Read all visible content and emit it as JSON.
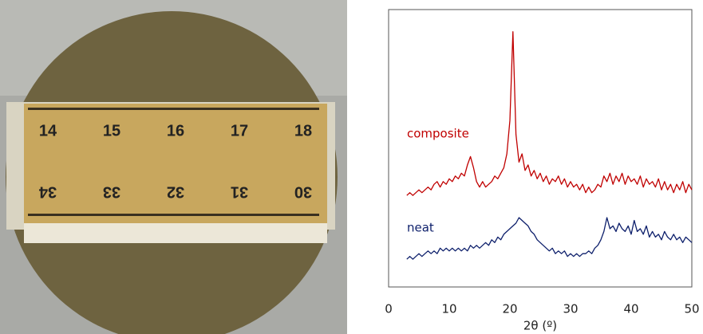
{
  "photo": {
    "ruler_top": [
      "14",
      "15",
      "16",
      "17",
      "18"
    ],
    "ruler_bottom": [
      "34",
      "33",
      "32",
      "31",
      "30"
    ]
  },
  "chart_data": {
    "type": "line",
    "xlabel": "2θ (º)",
    "x": [
      3,
      3.5,
      4,
      4.5,
      5,
      5.5,
      6,
      6.5,
      7,
      7.5,
      8,
      8.5,
      9,
      9.5,
      10,
      10.5,
      11,
      11.5,
      12,
      12.5,
      13,
      13.5,
      14,
      14.5,
      15,
      15.5,
      16,
      16.5,
      17,
      17.5,
      18,
      18.5,
      19,
      19.5,
      20,
      20.5,
      21,
      21.5,
      22,
      22.5,
      23,
      23.5,
      24,
      24.5,
      25,
      25.5,
      26,
      26.5,
      27,
      27.5,
      28,
      28.5,
      29,
      29.5,
      30,
      30.5,
      31,
      31.5,
      32,
      32.5,
      33,
      33.5,
      34,
      34.5,
      35,
      35.5,
      36,
      36.5,
      37,
      37.5,
      38,
      38.5,
      39,
      39.5,
      40,
      40.5,
      41,
      41.5,
      42,
      42.5,
      43,
      43.5,
      44,
      44.5,
      45,
      45.5,
      46,
      46.5,
      47,
      47.5,
      48,
      48.5,
      49,
      49.5,
      50
    ],
    "series": [
      {
        "name": "composite",
        "color": "#c00000",
        "values": [
          33,
          34,
          33,
          34,
          35,
          34,
          35,
          36,
          35,
          37,
          38,
          36,
          38,
          37,
          39,
          38,
          40,
          39,
          41,
          40,
          44,
          47,
          43,
          38,
          36,
          38,
          36,
          37,
          38,
          40,
          39,
          41,
          43,
          48,
          60,
          92,
          55,
          45,
          48,
          42,
          44,
          40,
          42,
          39,
          41,
          38,
          40,
          37,
          39,
          38,
          40,
          37,
          39,
          36,
          38,
          36,
          37,
          35,
          37,
          34,
          36,
          34,
          35,
          37,
          36,
          40,
          38,
          41,
          37,
          40,
          38,
          41,
          37,
          40,
          38,
          39,
          37,
          40,
          36,
          39,
          37,
          38,
          36,
          39,
          35,
          38,
          35,
          37,
          34,
          37,
          35,
          38,
          34,
          37,
          35
        ]
      },
      {
        "name": "neat",
        "color": "#0d1f6b",
        "values": [
          10,
          11,
          10,
          11,
          12,
          11,
          12,
          13,
          12,
          13,
          12,
          14,
          13,
          14,
          13,
          14,
          13,
          14,
          13,
          14,
          13,
          15,
          14,
          15,
          14,
          15,
          16,
          15,
          17,
          16,
          18,
          17,
          19,
          20,
          21,
          22,
          23,
          25,
          24,
          23,
          22,
          20,
          19,
          17,
          16,
          15,
          14,
          13,
          14,
          12,
          13,
          12,
          13,
          11,
          12,
          11,
          12,
          11,
          12,
          12,
          13,
          12,
          14,
          15,
          17,
          20,
          25,
          21,
          22,
          20,
          23,
          21,
          20,
          22,
          19,
          24,
          20,
          21,
          19,
          22,
          18,
          20,
          18,
          19,
          17,
          20,
          18,
          17,
          19,
          17,
          18,
          16,
          18,
          17,
          16
        ]
      }
    ],
    "xlim": [
      0,
      50
    ],
    "xticks": [
      0,
      10,
      20,
      30,
      40,
      50
    ],
    "ylim": [
      0,
      100
    ],
    "grid": false
  }
}
